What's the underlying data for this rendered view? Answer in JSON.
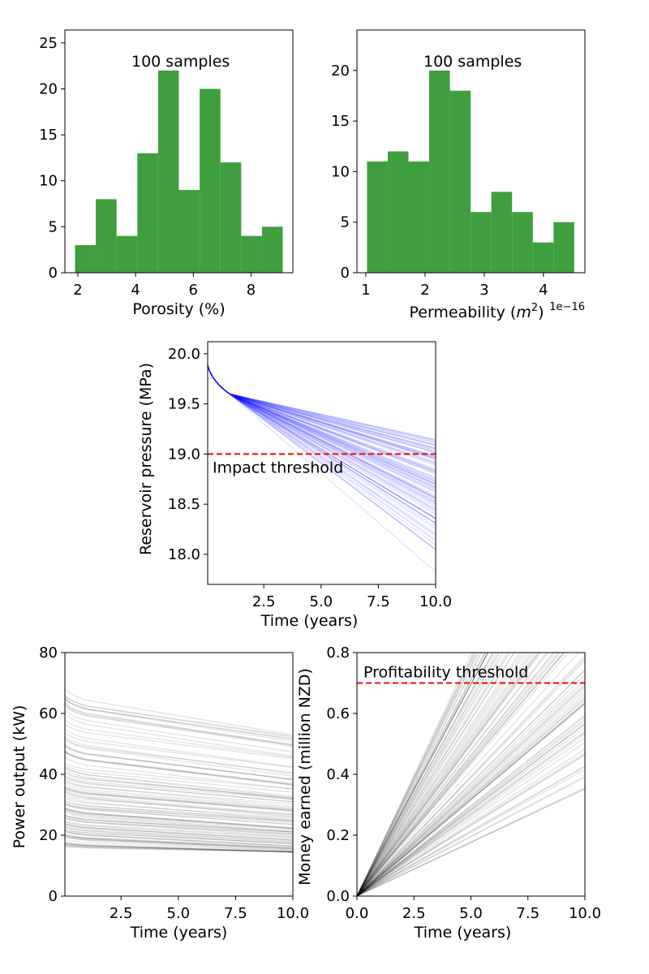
{
  "figure": {
    "background": "#ffffff"
  },
  "chart_data": [
    {
      "id": "porosity",
      "type": "bar",
      "histogram": true,
      "bin_edges": [
        1.9,
        2.62,
        3.34,
        4.06,
        4.78,
        5.5,
        6.22,
        6.94,
        7.66,
        8.38,
        9.1
      ],
      "values": [
        3,
        8,
        4,
        13,
        22,
        9,
        20,
        12,
        4,
        5
      ],
      "color": "#3f9f3f",
      "xlim": [
        1.55,
        9.45
      ],
      "ylim": [
        0,
        26.4
      ],
      "xticks": [
        2,
        4,
        6,
        8
      ],
      "yticks": [
        0,
        5,
        10,
        15,
        20,
        25
      ],
      "xlabel": "Porosity (%)",
      "ylabel": "",
      "annotation": "100 samples",
      "grid": false
    },
    {
      "id": "permeability",
      "type": "bar",
      "histogram": true,
      "bin_edges": [
        1.02,
        1.37,
        1.72,
        2.07,
        2.42,
        2.77,
        3.12,
        3.47,
        3.82,
        4.17,
        4.52
      ],
      "values": [
        11,
        12,
        11,
        20,
        18,
        6,
        8,
        6,
        3,
        5
      ],
      "color": "#3f9f3f",
      "xlim": [
        0.85,
        4.7
      ],
      "ylim": [
        0,
        24
      ],
      "xticks": [
        1,
        2,
        3,
        4
      ],
      "yticks": [
        0,
        5,
        10,
        15,
        20
      ],
      "xlabel": "Permeability ($m^2$)",
      "xlabel_base": "Permeability (",
      "xlabel_var": "m",
      "xlabel_sup": "2",
      "xlabel_close": ")",
      "offset_text": "1e−16",
      "ylabel": "",
      "annotation": "100 samples",
      "grid": false
    },
    {
      "id": "pressure",
      "type": "line",
      "xlim": [
        0.05,
        10
      ],
      "ylim": [
        17.7,
        20.12
      ],
      "xticks": [
        2.5,
        5.0,
        7.5,
        10.0
      ],
      "xtick_labels": [
        "2.5",
        "5.0",
        "7.5",
        "10.0"
      ],
      "yticks": [
        18.0,
        18.5,
        19.0,
        19.5,
        20.0
      ],
      "ytick_labels": [
        "18.0",
        "18.5",
        "19.0",
        "19.5",
        "20.0"
      ],
      "xlabel": "Time (years)",
      "ylabel": "Reservoir pressure (MPa)",
      "line_color": "#0000ff",
      "series_model": {
        "count": 100,
        "p0": 20.0,
        "p_at_1yr": 19.6,
        "p_at_10yr_range": [
          17.78,
          19.15
        ]
      },
      "threshold": {
        "value": 19.0,
        "color": "#ff0000",
        "label": "Impact threshold"
      },
      "grid": false
    },
    {
      "id": "power",
      "type": "line",
      "xlim": [
        0.05,
        10
      ],
      "ylim": [
        0,
        80
      ],
      "xticks": [
        2.5,
        5.0,
        7.5,
        10.0
      ],
      "xtick_labels": [
        "2.5",
        "5.0",
        "7.5",
        "10.0"
      ],
      "yticks": [
        0,
        20,
        40,
        60,
        80
      ],
      "ytick_labels": [
        "0",
        "20",
        "40",
        "60",
        "80"
      ],
      "xlabel": "Time (years)",
      "ylabel": "Power output (kW)",
      "line_color": "#000000",
      "series_model": {
        "count": 100,
        "start_range": [
          16.5,
          70
        ],
        "end_range": [
          14.5,
          53
        ]
      },
      "grid": false
    },
    {
      "id": "money",
      "type": "line",
      "xlim": [
        0,
        10
      ],
      "ylim": [
        0,
        0.8
      ],
      "xticks": [
        0,
        2.5,
        5.0,
        7.5,
        10.0
      ],
      "xtick_labels": [
        "0.0",
        "2.5",
        "5.0",
        "7.5",
        "10.0"
      ],
      "yticks": [
        0,
        0.2,
        0.4,
        0.6,
        0.8
      ],
      "ytick_labels": [
        "0.0",
        "0.2",
        "0.4",
        "0.6",
        "0.8"
      ],
      "xlabel": "Time (years)",
      "ylabel": "Money earned (million NZD)",
      "line_color": "#000000",
      "series_model": {
        "count": 100,
        "value_at_10yr_range": [
          0.35,
          1.6
        ]
      },
      "threshold": {
        "value": 0.7,
        "color": "#ff0000",
        "label": "Profitability threshold"
      },
      "grid": false
    }
  ]
}
